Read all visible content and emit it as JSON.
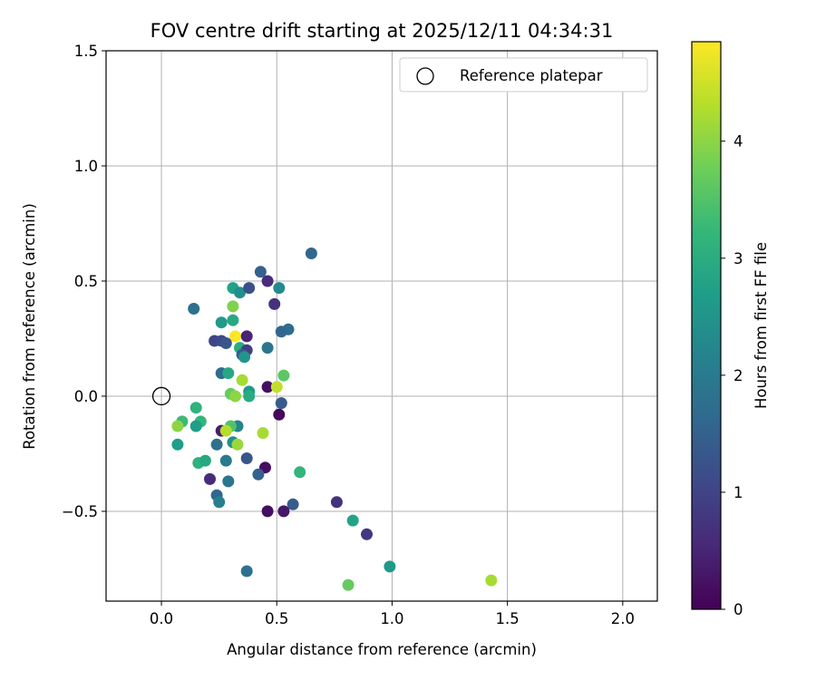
{
  "chart_data": {
    "type": "scatter",
    "title": "FOV centre drift starting at 2025/12/11 04:34:31",
    "xlabel": "Angular distance from reference (arcmin)",
    "ylabel": "Rotation from reference (arcmin)",
    "xlim": [
      -0.24,
      2.15
    ],
    "ylim": [
      -0.89,
      1.5
    ],
    "xticks": [
      0.0,
      0.5,
      1.0,
      1.5,
      2.0
    ],
    "xtick_labels": [
      "0.0",
      "0.5",
      "1.0",
      "1.5",
      "2.0"
    ],
    "yticks": [
      -0.5,
      0.0,
      0.5,
      1.0,
      1.5
    ],
    "ytick_labels": [
      "−0.5",
      "0.0",
      "0.5",
      "1.0",
      "1.5"
    ],
    "grid": true,
    "legend": {
      "label": "Reference platepar",
      "placement": "top-right"
    },
    "reference_point": {
      "x": 0.0,
      "y": 0.0
    },
    "colorbar": {
      "label": "Hours from first FF file",
      "range": [
        0,
        4.85
      ],
      "ticks": [
        0,
        1,
        2,
        3,
        4
      ],
      "tick_labels": [
        "0",
        "1",
        "2",
        "3",
        "4"
      ],
      "colormap": "viridis",
      "colormap_stops": [
        "#440154",
        "#482878",
        "#3e4989",
        "#31688e",
        "#26828e",
        "#1f9e89",
        "#35b779",
        "#6ece58",
        "#b5de2b",
        "#fde725"
      ]
    },
    "points": [
      {
        "x": 0.65,
        "y": 0.62,
        "c": 1.6
      },
      {
        "x": 0.43,
        "y": 0.54,
        "c": 1.5
      },
      {
        "x": 0.46,
        "y": 0.5,
        "c": 0.6
      },
      {
        "x": 0.51,
        "y": 0.47,
        "c": 2.3
      },
      {
        "x": 0.31,
        "y": 0.47,
        "c": 2.8
      },
      {
        "x": 0.34,
        "y": 0.45,
        "c": 2.4
      },
      {
        "x": 0.38,
        "y": 0.47,
        "c": 1.2
      },
      {
        "x": 0.49,
        "y": 0.4,
        "c": 0.7
      },
      {
        "x": 0.14,
        "y": 0.38,
        "c": 1.8
      },
      {
        "x": 0.31,
        "y": 0.39,
        "c": 3.9
      },
      {
        "x": 0.26,
        "y": 0.32,
        "c": 2.6
      },
      {
        "x": 0.31,
        "y": 0.33,
        "c": 2.9
      },
      {
        "x": 0.55,
        "y": 0.29,
        "c": 1.7
      },
      {
        "x": 0.52,
        "y": 0.28,
        "c": 1.6
      },
      {
        "x": 0.32,
        "y": 0.26,
        "c": 4.85
      },
      {
        "x": 0.37,
        "y": 0.26,
        "c": 0.5
      },
      {
        "x": 0.23,
        "y": 0.24,
        "c": 1.0
      },
      {
        "x": 0.26,
        "y": 0.24,
        "c": 1.1
      },
      {
        "x": 0.28,
        "y": 0.23,
        "c": 1.3
      },
      {
        "x": 0.46,
        "y": 0.21,
        "c": 1.9
      },
      {
        "x": 0.34,
        "y": 0.21,
        "c": 3.0
      },
      {
        "x": 0.37,
        "y": 0.2,
        "c": 0.9
      },
      {
        "x": 0.35,
        "y": 0.18,
        "c": 1.4
      },
      {
        "x": 0.36,
        "y": 0.17,
        "c": 2.5
      },
      {
        "x": 0.26,
        "y": 0.1,
        "c": 1.7
      },
      {
        "x": 0.29,
        "y": 0.1,
        "c": 2.9
      },
      {
        "x": 0.53,
        "y": 0.09,
        "c": 3.6
      },
      {
        "x": 0.35,
        "y": 0.07,
        "c": 4.2
      },
      {
        "x": 0.46,
        "y": 0.04,
        "c": 0.2
      },
      {
        "x": 0.5,
        "y": 0.04,
        "c": 4.4
      },
      {
        "x": 0.38,
        "y": 0.02,
        "c": 2.6
      },
      {
        "x": 0.3,
        "y": 0.01,
        "c": 3.7
      },
      {
        "x": 0.32,
        "y": 0.0,
        "c": 4.0
      },
      {
        "x": 0.38,
        "y": 0.0,
        "c": 3.0
      },
      {
        "x": 0.52,
        "y": -0.03,
        "c": 1.4
      },
      {
        "x": 0.15,
        "y": -0.05,
        "c": 3.1
      },
      {
        "x": 0.51,
        "y": -0.08,
        "c": 0.1
      },
      {
        "x": 0.09,
        "y": -0.11,
        "c": 3.3
      },
      {
        "x": 0.17,
        "y": -0.11,
        "c": 3.2
      },
      {
        "x": 0.07,
        "y": -0.13,
        "c": 4.0
      },
      {
        "x": 0.15,
        "y": -0.13,
        "c": 2.7
      },
      {
        "x": 0.33,
        "y": -0.13,
        "c": 2.2
      },
      {
        "x": 0.3,
        "y": -0.13,
        "c": 3.5
      },
      {
        "x": 0.26,
        "y": -0.15,
        "c": 0.4
      },
      {
        "x": 0.28,
        "y": -0.15,
        "c": 4.3
      },
      {
        "x": 0.44,
        "y": -0.16,
        "c": 4.2
      },
      {
        "x": 0.24,
        "y": -0.21,
        "c": 1.8
      },
      {
        "x": 0.31,
        "y": -0.2,
        "c": 2.4
      },
      {
        "x": 0.33,
        "y": -0.21,
        "c": 4.1
      },
      {
        "x": 0.07,
        "y": -0.21,
        "c": 2.7
      },
      {
        "x": 0.37,
        "y": -0.27,
        "c": 1.3
      },
      {
        "x": 0.28,
        "y": -0.28,
        "c": 2.0
      },
      {
        "x": 0.16,
        "y": -0.29,
        "c": 3.1
      },
      {
        "x": 0.19,
        "y": -0.28,
        "c": 2.9
      },
      {
        "x": 0.45,
        "y": -0.31,
        "c": 0.2
      },
      {
        "x": 0.6,
        "y": -0.33,
        "c": 3.2
      },
      {
        "x": 0.42,
        "y": -0.34,
        "c": 1.5
      },
      {
        "x": 0.21,
        "y": -0.36,
        "c": 0.6
      },
      {
        "x": 0.29,
        "y": -0.37,
        "c": 1.9
      },
      {
        "x": 0.24,
        "y": -0.43,
        "c": 1.6
      },
      {
        "x": 0.25,
        "y": -0.46,
        "c": 2.1
      },
      {
        "x": 0.57,
        "y": -0.47,
        "c": 1.4
      },
      {
        "x": 0.76,
        "y": -0.46,
        "c": 0.7
      },
      {
        "x": 0.46,
        "y": -0.5,
        "c": 0.2
      },
      {
        "x": 0.53,
        "y": -0.5,
        "c": 0.3
      },
      {
        "x": 0.83,
        "y": -0.54,
        "c": 2.8
      },
      {
        "x": 0.89,
        "y": -0.6,
        "c": 0.8
      },
      {
        "x": 0.99,
        "y": -0.74,
        "c": 2.6
      },
      {
        "x": 0.37,
        "y": -0.76,
        "c": 1.8
      },
      {
        "x": 1.43,
        "y": -0.8,
        "c": 4.2
      },
      {
        "x": 0.81,
        "y": -0.82,
        "c": 3.7
      }
    ]
  }
}
